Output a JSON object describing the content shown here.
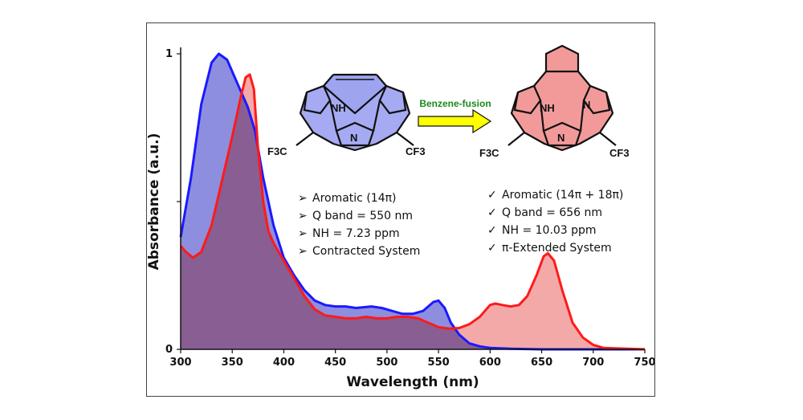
{
  "chart_data": {
    "type": "area",
    "xlabel": "Wavelength (nm)",
    "ylabel": "Absorbance (a.u.)",
    "xlim": [
      300,
      750
    ],
    "ylim": [
      0,
      1
    ],
    "x_ticks": [
      300,
      350,
      400,
      450,
      500,
      550,
      600,
      650,
      700,
      750
    ],
    "y_ticks": [
      {
        "value": 0,
        "label": "0"
      },
      {
        "value": 0.5,
        "label": ""
      },
      {
        "value": 1,
        "label": "1"
      }
    ],
    "grid": false,
    "series": [
      {
        "color": "#1a1aff",
        "fill": "#7a7ad8",
        "points": [
          [
            300,
            0.38
          ],
          [
            310,
            0.58
          ],
          [
            320,
            0.83
          ],
          [
            330,
            0.97
          ],
          [
            337,
            1.0
          ],
          [
            345,
            0.98
          ],
          [
            355,
            0.9
          ],
          [
            365,
            0.82
          ],
          [
            372,
            0.74
          ],
          [
            380,
            0.58
          ],
          [
            390,
            0.42
          ],
          [
            400,
            0.31
          ],
          [
            410,
            0.25
          ],
          [
            420,
            0.2
          ],
          [
            430,
            0.165
          ],
          [
            440,
            0.15
          ],
          [
            450,
            0.145
          ],
          [
            460,
            0.145
          ],
          [
            470,
            0.14
          ],
          [
            485,
            0.145
          ],
          [
            495,
            0.14
          ],
          [
            505,
            0.13
          ],
          [
            515,
            0.12
          ],
          [
            525,
            0.12
          ],
          [
            535,
            0.13
          ],
          [
            545,
            0.16
          ],
          [
            550,
            0.165
          ],
          [
            556,
            0.14
          ],
          [
            562,
            0.09
          ],
          [
            570,
            0.05
          ],
          [
            580,
            0.02
          ],
          [
            590,
            0.01
          ],
          [
            600,
            0.005
          ],
          [
            620,
            0.002
          ],
          [
            650,
            0.0
          ],
          [
            750,
            0.0
          ]
        ]
      },
      {
        "color": "#ff1a1a",
        "fill": "#f08c8c",
        "points": [
          [
            300,
            0.35
          ],
          [
            305,
            0.33
          ],
          [
            312,
            0.31
          ],
          [
            320,
            0.33
          ],
          [
            330,
            0.42
          ],
          [
            340,
            0.57
          ],
          [
            350,
            0.72
          ],
          [
            358,
            0.85
          ],
          [
            363,
            0.92
          ],
          [
            367,
            0.93
          ],
          [
            371,
            0.88
          ],
          [
            375,
            0.68
          ],
          [
            380,
            0.5
          ],
          [
            385,
            0.4
          ],
          [
            390,
            0.36
          ],
          [
            400,
            0.3
          ],
          [
            410,
            0.24
          ],
          [
            420,
            0.18
          ],
          [
            430,
            0.135
          ],
          [
            440,
            0.115
          ],
          [
            450,
            0.11
          ],
          [
            460,
            0.105
          ],
          [
            470,
            0.105
          ],
          [
            480,
            0.11
          ],
          [
            490,
            0.105
          ],
          [
            500,
            0.105
          ],
          [
            510,
            0.11
          ],
          [
            520,
            0.11
          ],
          [
            530,
            0.105
          ],
          [
            540,
            0.09
          ],
          [
            550,
            0.075
          ],
          [
            560,
            0.07
          ],
          [
            570,
            0.072
          ],
          [
            580,
            0.085
          ],
          [
            590,
            0.11
          ],
          [
            600,
            0.15
          ],
          [
            605,
            0.155
          ],
          [
            612,
            0.15
          ],
          [
            620,
            0.145
          ],
          [
            628,
            0.15
          ],
          [
            636,
            0.18
          ],
          [
            645,
            0.25
          ],
          [
            652,
            0.315
          ],
          [
            656,
            0.325
          ],
          [
            662,
            0.3
          ],
          [
            670,
            0.2
          ],
          [
            680,
            0.09
          ],
          [
            690,
            0.04
          ],
          [
            700,
            0.015
          ],
          [
            710,
            0.005
          ],
          [
            750,
            0.0
          ]
        ]
      }
    ],
    "annotations": {
      "arrow_label": "Benzene-fusion",
      "left_bullets": [
        "Aromatic (14π)",
        "Q band = 550 nm",
        "NH = 7.23 ppm",
        "Contracted System"
      ],
      "right_bullets": [
        "Aromatic (14π + 18π)",
        "Q band = 656 nm",
        "NH = 10.03 ppm",
        "π-Extended System"
      ],
      "left_molecule_labels": {
        "nh": "NH",
        "n": "N",
        "f3c": "F3C",
        "cf3": "CF3"
      },
      "right_molecule_labels": {
        "nh": "NH",
        "n_top": "N",
        "n": "N",
        "f3c": "F3C",
        "cf3": "CF3"
      }
    }
  }
}
